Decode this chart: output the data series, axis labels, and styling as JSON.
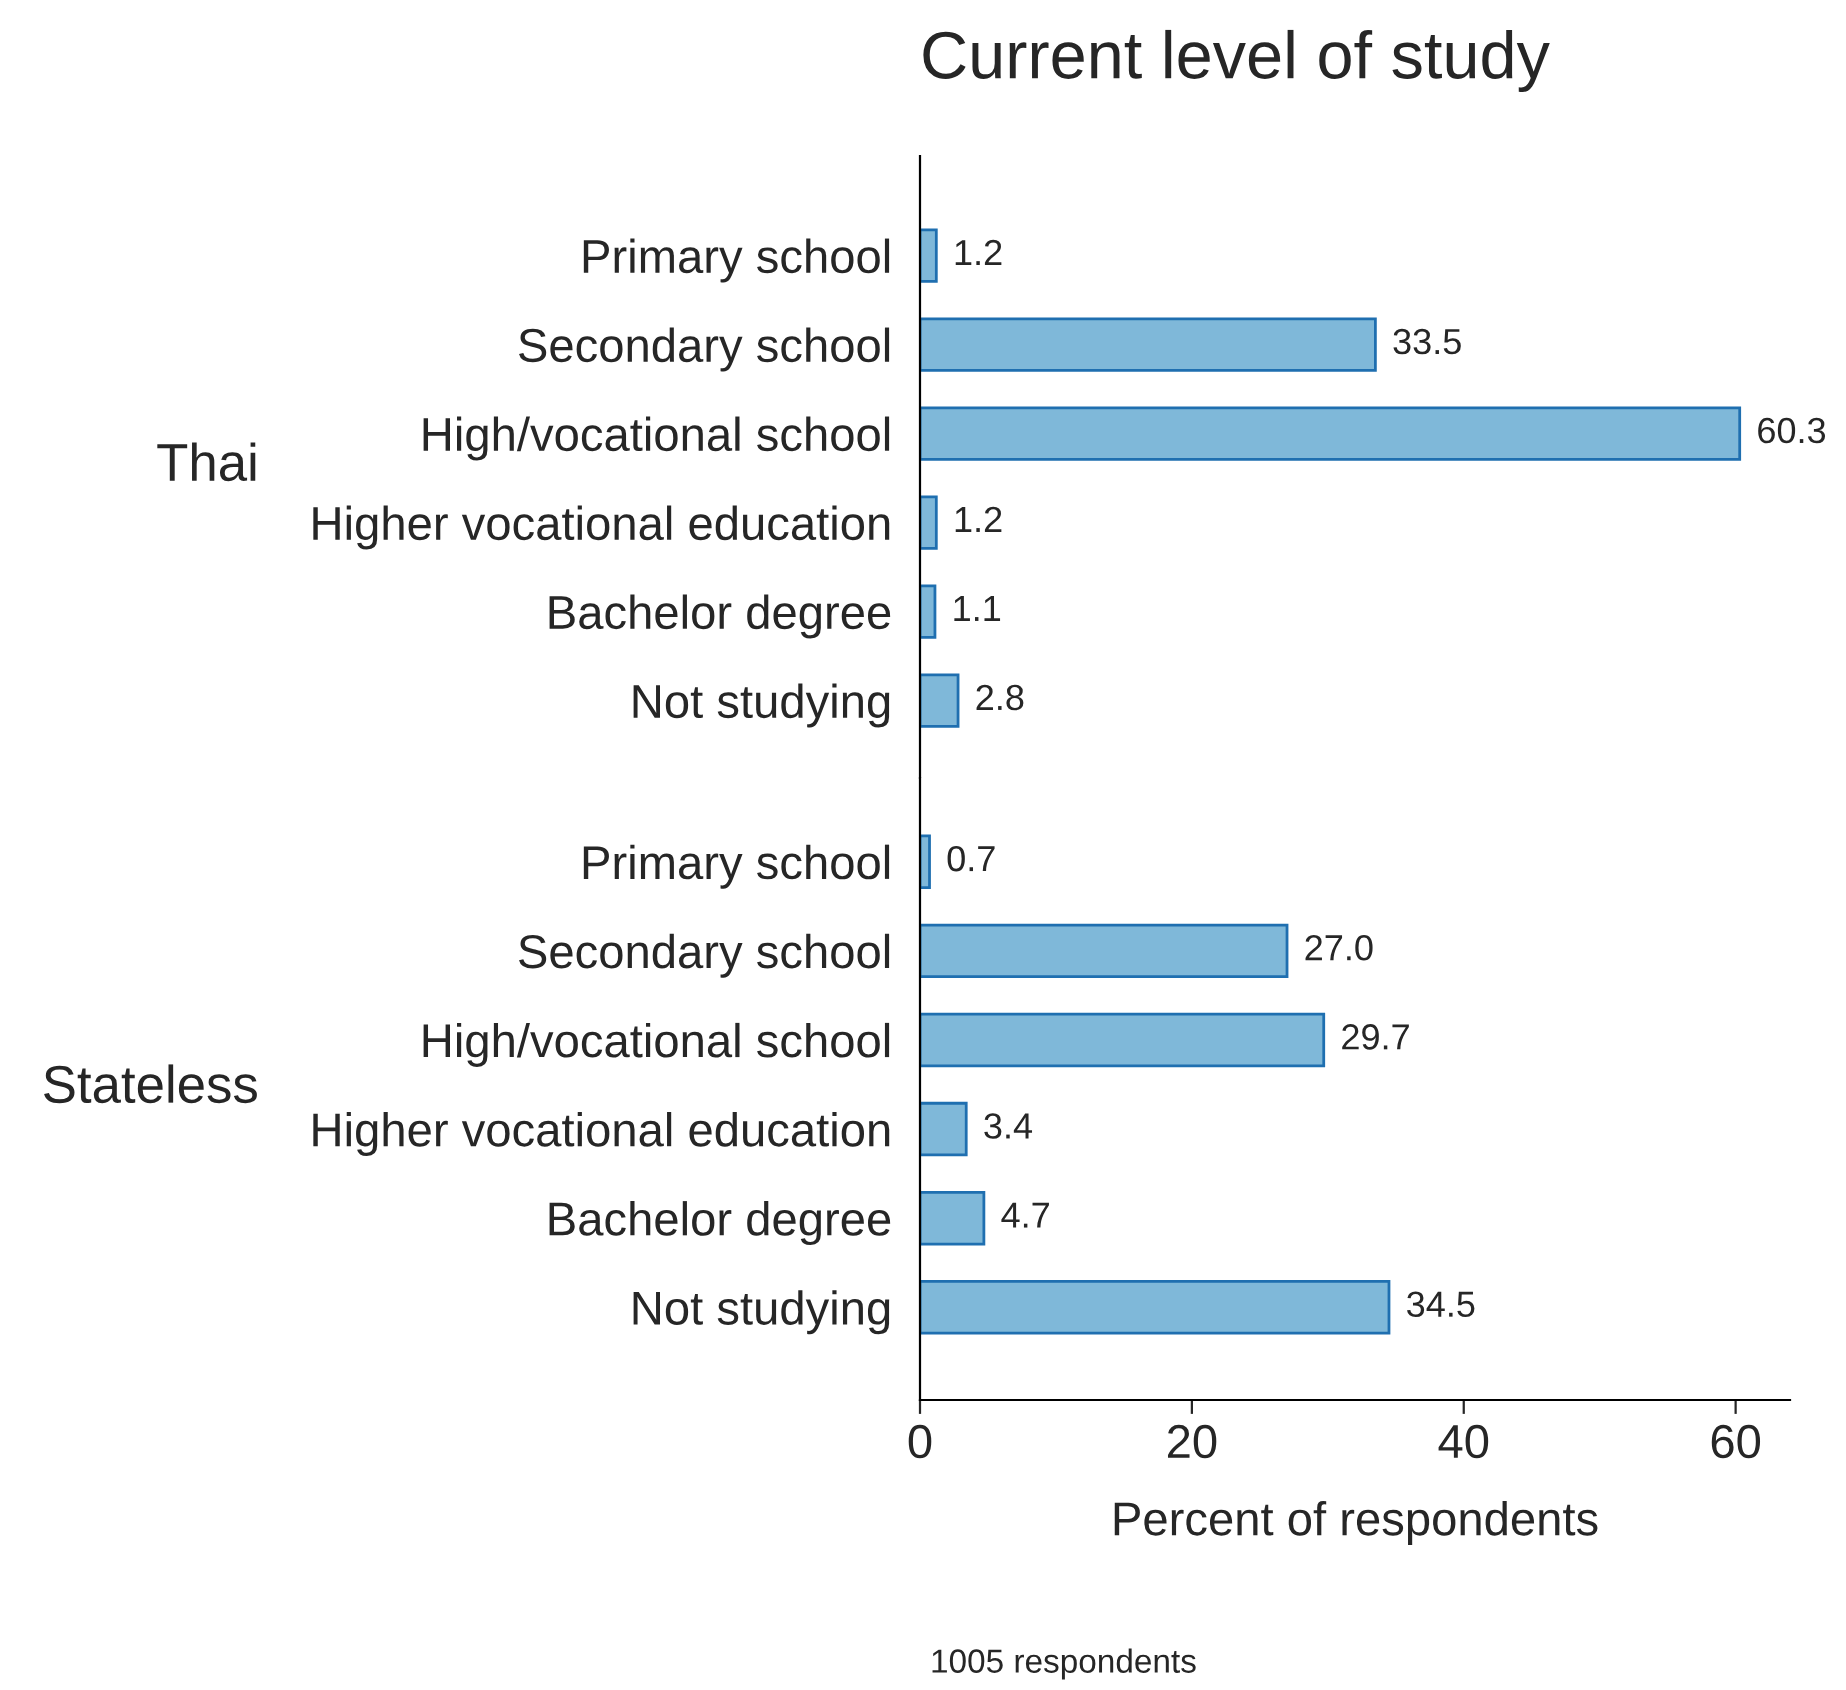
{
  "chart_data": [
    {
      "type": "bar",
      "orientation": "horizontal",
      "title": "Current level of study",
      "ylabel": "Thai",
      "categories": [
        "Primary school",
        "Secondary school",
        "High/vocational school",
        "Higher vocational education",
        "Bachelor degree",
        "Not studying"
      ],
      "values": [
        1.2,
        33.5,
        60.3,
        1.2,
        1.1,
        2.8
      ],
      "color": "#7fb8d9",
      "xlim": [
        0,
        64
      ],
      "xticks": [
        0,
        20,
        40,
        60
      ],
      "tick_labels": "y",
      "data_labels": true,
      "grid": false,
      "legend": false
    },
    {
      "type": "bar",
      "orientation": "horizontal",
      "ylabel": "Stateless",
      "xlabel": "Percent of respondents",
      "categories": [
        "Primary school",
        "Secondary school",
        "High/vocational school",
        "Higher vocational education",
        "Bachelor degree",
        "Not studying"
      ],
      "values": [
        0.7,
        27.0,
        29.7,
        3.4,
        4.7,
        34.5
      ],
      "color": "#7fb8d9",
      "value_labels": [
        "0.7",
        "27.0",
        "29.7",
        "3.4",
        "4.7",
        "34.5"
      ],
      "xlim": [
        0,
        64
      ],
      "xticks": [
        0,
        20,
        40,
        60
      ],
      "grid": false,
      "legend": false,
      "annotations": [
        "1005 respondents"
      ]
    }
  ]
}
